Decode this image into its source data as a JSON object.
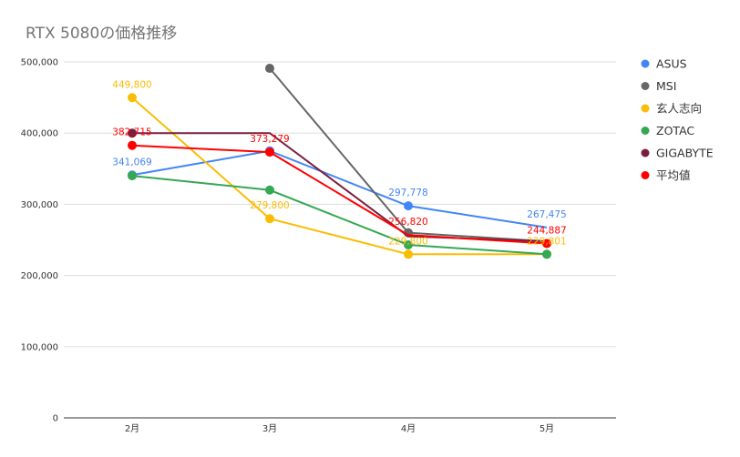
{
  "chart_data": {
    "type": "line",
    "title": "RTX 5080の価格推移",
    "xlabel": "",
    "ylabel": "",
    "categories": [
      "2月",
      "3月",
      "4月",
      "5月"
    ],
    "ylim": [
      0,
      500000
    ],
    "yticks": [
      0,
      100000,
      200000,
      300000,
      400000,
      500000
    ],
    "ytick_labels": [
      "0",
      "100,000",
      "200,000",
      "300,000",
      "400,000",
      "500,000"
    ],
    "grid": true,
    "legend": "right",
    "series": [
      {
        "name": "ASUS",
        "color": "#4285F4",
        "values": [
          341069,
          375000,
          297778,
          267475
        ],
        "markers": [
          true,
          true,
          true,
          false
        ],
        "labels": [
          "341,069",
          "",
          "297,778",
          "267,475"
        ]
      },
      {
        "name": "MSI",
        "color": "#666666",
        "values": [
          null,
          491000,
          260000,
          248000
        ],
        "markers": [
          false,
          true,
          true,
          false
        ],
        "labels": [
          "",
          "",
          "",
          ""
        ]
      },
      {
        "name": "玄人志向",
        "color": "#FBBC04",
        "values": [
          449800,
          279800,
          229800,
          229801
        ],
        "markers": [
          true,
          true,
          true,
          true
        ],
        "labels": [
          "449,800",
          "279,800",
          "229,800",
          "229,801"
        ]
      },
      {
        "name": "ZOTAC",
        "color": "#34A853",
        "values": [
          340000,
          320000,
          243000,
          229801
        ],
        "markers": [
          true,
          true,
          true,
          true
        ],
        "labels": [
          "",
          "",
          "",
          ""
        ]
      },
      {
        "name": "GIGABYTE",
        "color": "#7B1E3E",
        "values": [
          400000,
          400000,
          255000,
          248000
        ],
        "markers": [
          true,
          false,
          false,
          false
        ],
        "labels": [
          "",
          "",
          "",
          ""
        ]
      },
      {
        "name": "平均値",
        "color": "#FF0000",
        "values": [
          382715,
          373279,
          256820,
          244887
        ],
        "markers": [
          true,
          true,
          false,
          true
        ],
        "labels": [
          "382,715",
          "373,279",
          "256,820",
          "244,887"
        ]
      }
    ]
  }
}
